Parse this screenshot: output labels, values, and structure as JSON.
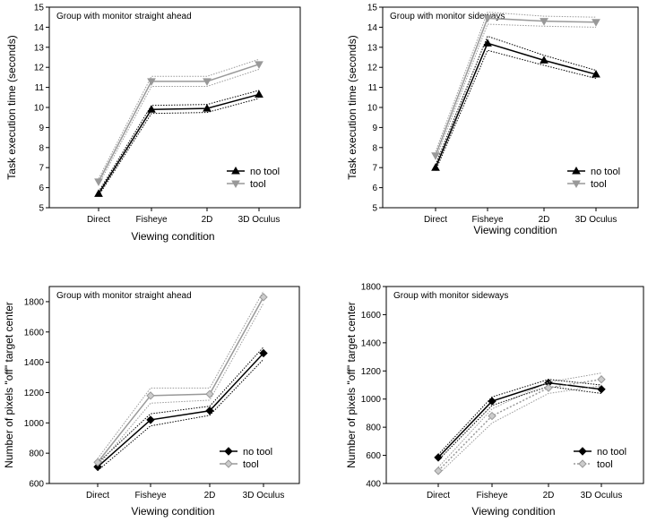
{
  "chart_data": [
    {
      "type": "line",
      "title": "Group with monitor straight ahead",
      "xlabel": "Viewing condition",
      "ylabel": "Task execution time (seconds)",
      "categories": [
        "Direct",
        "Fisheye",
        "2D",
        "3D Oculus"
      ],
      "ylim": [
        5,
        15
      ],
      "yticks": [
        "5",
        "6",
        "7",
        "8",
        "9",
        "10",
        "11",
        "12",
        "13",
        "14",
        "15"
      ],
      "legend_position": "lower-right",
      "series": [
        {
          "name": "no tool",
          "values": [
            5.7,
            9.9,
            9.95,
            10.65
          ],
          "ci": [
            0.1,
            0.2,
            0.2,
            0.2
          ],
          "color": "#000000",
          "marker": "triangle-up"
        },
        {
          "name": "tool",
          "values": [
            6.3,
            11.3,
            11.3,
            12.15
          ],
          "ci": [
            0.15,
            0.25,
            0.25,
            0.25
          ],
          "color": "#999999",
          "marker": "triangle-down"
        }
      ]
    },
    {
      "type": "line",
      "title": "Group with monitor sideways",
      "xlabel": "Viewing condition",
      "ylabel": "Task execution time (seconds)",
      "categories": [
        "Direct",
        "Fisheye",
        "2D",
        "3D Oculus"
      ],
      "ylim": [
        5,
        15
      ],
      "yticks": [
        "5",
        "6",
        "7",
        "8",
        "9",
        "10",
        "11",
        "12",
        "13",
        "14",
        "15"
      ],
      "legend_position": "lower-right",
      "series": [
        {
          "name": "no tool",
          "values": [
            7.0,
            13.2,
            12.35,
            11.65
          ],
          "ci": [
            0.15,
            0.35,
            0.25,
            0.2
          ],
          "color": "#000000",
          "marker": "triangle-up"
        },
        {
          "name": "tool",
          "values": [
            7.6,
            14.45,
            14.3,
            14.25
          ],
          "ci": [
            0.2,
            0.3,
            0.25,
            0.25
          ],
          "color": "#999999",
          "marker": "triangle-down"
        }
      ]
    },
    {
      "type": "line",
      "title": "Group with monitor straight ahead",
      "xlabel": "Viewing condition",
      "ylabel": "Number of pixels \"off\" target center",
      "categories": [
        "Direct",
        "Fisheye",
        "2D",
        "3D Oculus"
      ],
      "ylim": [
        600,
        1900
      ],
      "yticks": [
        "600",
        "800",
        "1000",
        "1200",
        "1400",
        "1600",
        "1800"
      ],
      "legend_position": "lower-right",
      "series": [
        {
          "name": "no tool",
          "values": [
            710,
            1020,
            1080,
            1460
          ],
          "ci": [
            25,
            40,
            30,
            40
          ],
          "color": "#000000",
          "marker": "diamond"
        },
        {
          "name": "tool",
          "values": [
            740,
            1180,
            1190,
            1830
          ],
          "ci": [
            25,
            50,
            40,
            40
          ],
          "color": "#999999",
          "marker": "diamond"
        }
      ]
    },
    {
      "type": "line",
      "title": "Group with monitor sideways",
      "xlabel": "Viewing condition",
      "ylabel": "Number of pixels \"off\" target center",
      "categories": [
        "Direct",
        "Fisheye",
        "2D",
        "3D Oculus"
      ],
      "ylim": [
        400,
        1800
      ],
      "yticks": [
        "400",
        "600",
        "800",
        "1000",
        "1200",
        "1400",
        "1600",
        "1800"
      ],
      "legend_position": "lower-right",
      "series": [
        {
          "name": "no tool",
          "values": [
            585,
            985,
            1115,
            1070
          ],
          "ci": [
            20,
            30,
            25,
            30
          ],
          "color": "#000000",
          "marker": "diamond"
        },
        {
          "name": "tool",
          "values": [
            490,
            880,
            1080,
            1140
          ],
          "ci": [
            25,
            50,
            40,
            45
          ],
          "color": "#999999",
          "marker": "diamond"
        }
      ]
    }
  ]
}
